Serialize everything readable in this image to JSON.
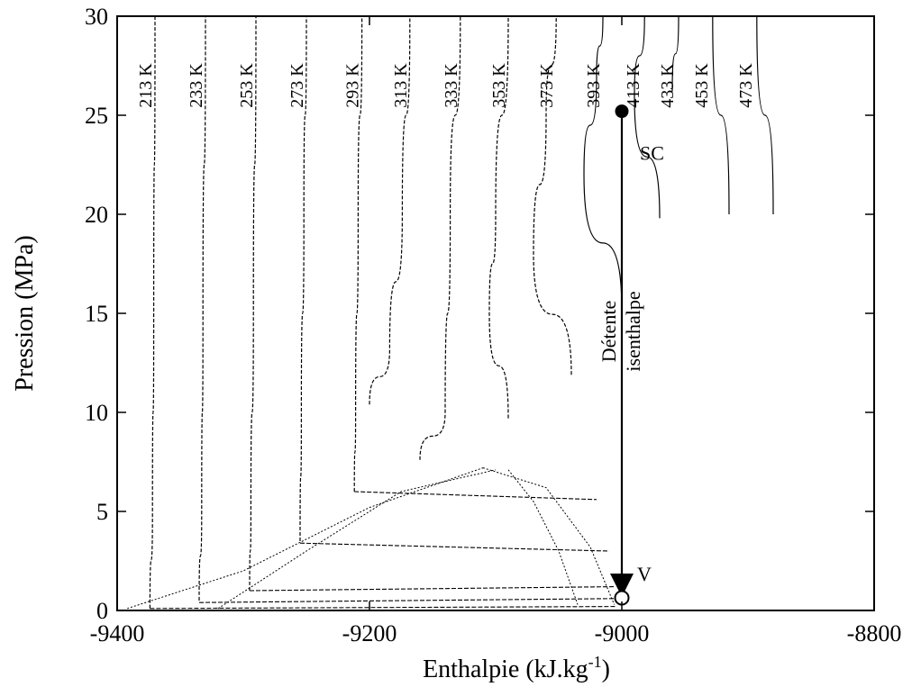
{
  "chart_data": {
    "type": "line",
    "title": "",
    "xlabel": "Enthalpie (kJ.kg",
    "xlabel_superscript": "-1",
    "xlabel_close": ")",
    "ylabel": "Pression (MPa)",
    "xlim": [
      -9400,
      -8800
    ],
    "ylim": [
      0,
      30
    ],
    "x_ticks": [
      -9400,
      -9200,
      -9000,
      -8800
    ],
    "x_tick_labels": [
      "-9400",
      "-9200",
      "-9000",
      "-8800"
    ],
    "y_ticks": [
      0,
      5,
      10,
      15,
      20,
      25,
      30
    ],
    "y_tick_labels": [
      "0",
      "5",
      "10",
      "15",
      "20",
      "25",
      "30"
    ],
    "grid": false,
    "isotherms": [
      {
        "name": "213 K",
        "points": [
          [
            -9374,
            0.1
          ],
          [
            -9372,
            5
          ],
          [
            -9371,
            15
          ],
          [
            -9370,
            30
          ]
        ]
      },
      {
        "name": "233 K",
        "points": [
          [
            -9335,
            0.5
          ],
          [
            -9333,
            5
          ],
          [
            -9332,
            15
          ],
          [
            -9330,
            30
          ]
        ]
      },
      {
        "name": "253 K",
        "points": [
          [
            -9295,
            1.0
          ],
          [
            -9294,
            5
          ],
          [
            -9292,
            15
          ],
          [
            -9290,
            30
          ]
        ]
      },
      {
        "name": "273 K",
        "points": [
          [
            -9255,
            3.5
          ],
          [
            -9254,
            10
          ],
          [
            -9252,
            20
          ],
          [
            -9250,
            30
          ]
        ]
      },
      {
        "name": "293 K",
        "points": [
          [
            -9212,
            6.0
          ],
          [
            -9211,
            10
          ],
          [
            -9209,
            20
          ],
          [
            -9206,
            30
          ]
        ]
      },
      {
        "name": "313 K",
        "points": [
          [
            -9200,
            10.4
          ],
          [
            -9184,
            13.2
          ],
          [
            -9174,
            20
          ],
          [
            -9168,
            30
          ]
        ]
      },
      {
        "name": "333 K",
        "points": [
          [
            -9160,
            7.6
          ],
          [
            -9140,
            10
          ],
          [
            -9136,
            20
          ],
          [
            -9128,
            30
          ]
        ]
      },
      {
        "name": "353 K",
        "points": [
          [
            -9090,
            9.7
          ],
          [
            -9105,
            15
          ],
          [
            -9100,
            20
          ],
          [
            -9090,
            30
          ]
        ]
      },
      {
        "name": "373 K",
        "points": [
          [
            -9040,
            11.9
          ],
          [
            -9070,
            18
          ],
          [
            -9060,
            25
          ],
          [
            -9052,
            30
          ]
        ]
      },
      {
        "name": "393 K",
        "points": [
          [
            -9000,
            15.1
          ],
          [
            -9030,
            22
          ],
          [
            -9020,
            27
          ],
          [
            -9015,
            30
          ]
        ]
      },
      {
        "name": "413 K",
        "points": [
          [
            -8970,
            19.8
          ],
          [
            -8990,
            26
          ],
          [
            -8982,
            30
          ]
        ]
      },
      {
        "name": "433 K",
        "points": [
          [
            -8960,
            26.2
          ],
          [
            -8955,
            30
          ]
        ]
      },
      {
        "name": "453 K",
        "points": [
          [
            -8915,
            20
          ],
          [
            -8928,
            30
          ]
        ]
      },
      {
        "name": "473 K",
        "points": [
          [
            -8880,
            20
          ],
          [
            -8893,
            30
          ]
        ]
      }
    ],
    "expansion_path": {
      "name": "Détente isenthalpe",
      "start": {
        "label": "SC",
        "h": -9000,
        "p": 25.2
      },
      "end": {
        "label": "V",
        "h": -9000,
        "p": 0.5
      }
    },
    "annotations": [
      "SC",
      "V",
      "Détente",
      "isenthalpe"
    ]
  }
}
